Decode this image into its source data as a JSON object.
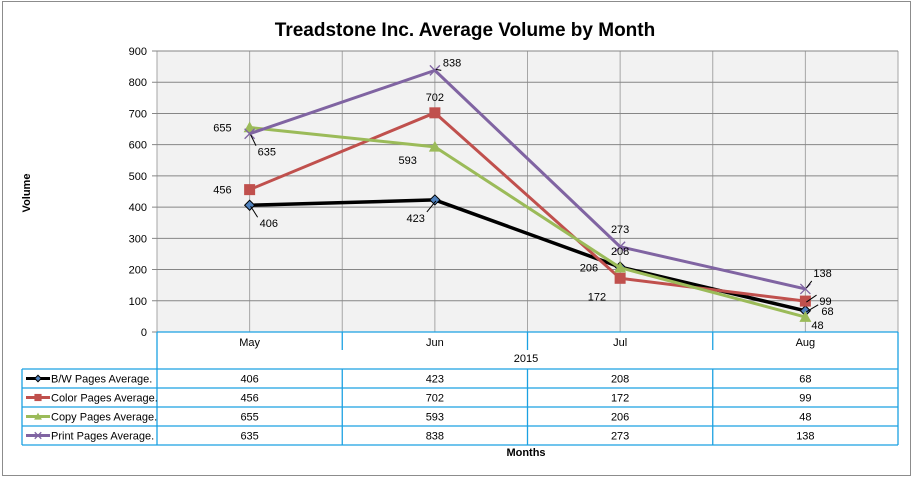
{
  "chart_data": {
    "type": "line",
    "title": "Treadstone Inc. Average Volume by Month",
    "xlabel": "Months",
    "ylabel": "Volume",
    "x_group_label": "2015",
    "categories": [
      "May",
      "Jun",
      "Jul",
      "Aug"
    ],
    "ylim": [
      0,
      900
    ],
    "yticks": [
      0,
      100,
      200,
      300,
      400,
      500,
      600,
      700,
      800,
      900
    ],
    "grid": true,
    "legend": "data-table-left",
    "series": [
      {
        "name": "B/W Pages Average.",
        "values": [
          406,
          423,
          208,
          68
        ],
        "color": "#000000",
        "marker": "diamond",
        "marker_color": "#4f81bd"
      },
      {
        "name": "Color Pages Average.",
        "values": [
          456,
          702,
          172,
          99
        ],
        "color": "#c0504d",
        "marker": "square",
        "marker_color": "#c0504d"
      },
      {
        "name": "Copy Pages Average.",
        "values": [
          655,
          593,
          206,
          48
        ],
        "color": "#9bbb59",
        "marker": "triangle",
        "marker_color": "#9bbb59"
      },
      {
        "name": "Print Pages Average.",
        "values": [
          635,
          838,
          273,
          138
        ],
        "color": "#8064a2",
        "marker": "x",
        "marker_color": "#8064a2"
      }
    ]
  },
  "colors": {
    "plot_background": "#f2f2f2",
    "gridline": "#a6a6a6",
    "table_border": "#1ba1e2",
    "frame_border": "#8c8c8c"
  }
}
